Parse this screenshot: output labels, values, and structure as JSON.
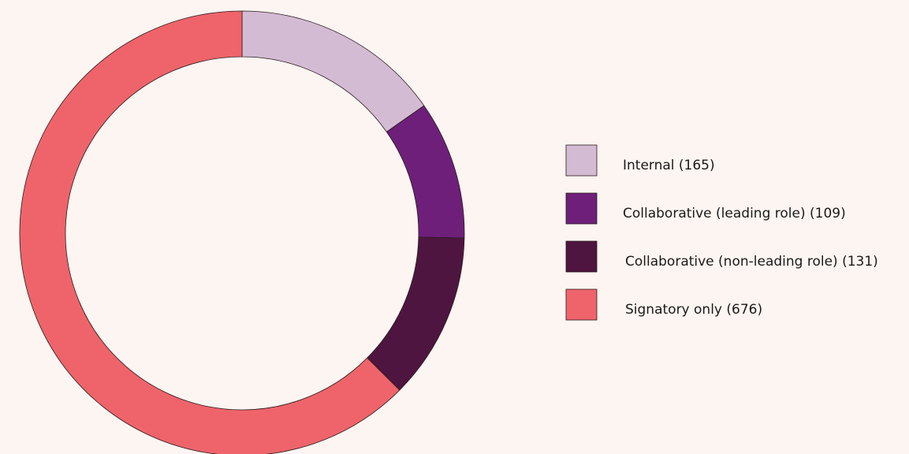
{
  "chart_data": {
    "type": "donut",
    "categories": [
      "Internal (165)",
      "Collaborative (leading role) (109)",
      "Collaborative (non-leading role) (131)",
      "Signatory only (676)"
    ],
    "values": [
      165,
      109,
      131,
      676
    ],
    "colors": [
      "#d4bbd4",
      "#6e1f7a",
      "#4e1541",
      "#ef646b"
    ],
    "legend": "right"
  }
}
